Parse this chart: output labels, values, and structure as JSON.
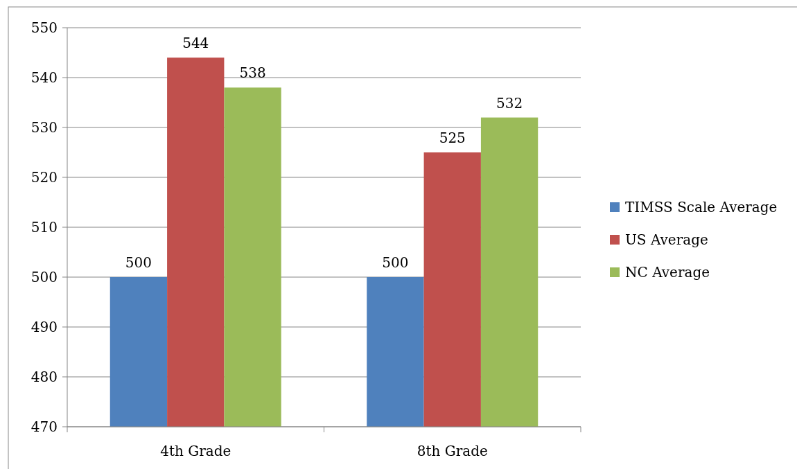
{
  "chart_data": {
    "type": "bar",
    "categories": [
      "4th Grade",
      "8th Grade"
    ],
    "series": [
      {
        "name": "TIMSS Scale Average",
        "color": "#4f81bd",
        "values": [
          500,
          500
        ]
      },
      {
        "name": "US Average",
        "color": "#c0504d",
        "values": [
          544,
          525
        ]
      },
      {
        "name": "NC Average",
        "color": "#9bbb59",
        "values": [
          538,
          532
        ]
      }
    ],
    "ylim": [
      470,
      550
    ],
    "yticks": [
      470,
      480,
      490,
      500,
      510,
      520,
      530,
      540,
      550
    ],
    "grid": "y",
    "legend": "right",
    "data_labels": true
  }
}
